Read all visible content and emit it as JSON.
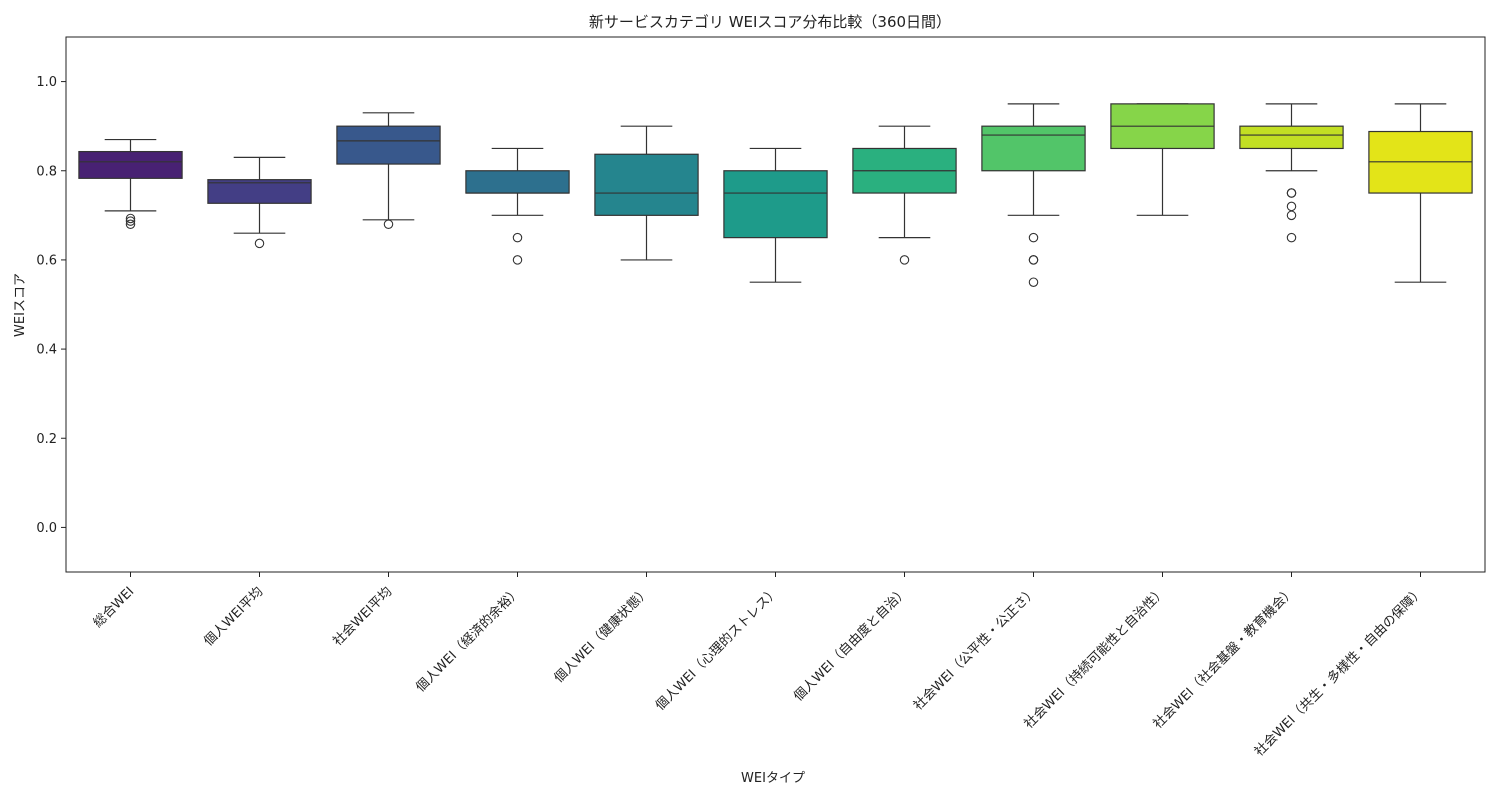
{
  "chart_data": {
    "type": "box",
    "title": "新サービスカテゴリ WEIスコア分布比較（360日間）",
    "xlabel": "WEIタイプ",
    "ylabel": "WEIスコア",
    "ylim": [
      -0.1,
      1.1
    ],
    "yticks": [
      0.0,
      0.2,
      0.4,
      0.6,
      0.8,
      1.0
    ],
    "ytick_labels": [
      "0.0",
      "0.2",
      "0.4",
      "0.6",
      "0.8",
      "1.0"
    ],
    "grid": false,
    "categories": [
      "総合WEI",
      "個人WEI平均",
      "社会WEI平均",
      "個人WEI（経済的余裕）",
      "個人WEI（健康状態）",
      "個人WEI（心理的ストレス）",
      "個人WEI（自由度と自治）",
      "社会WEI（公平性・公正さ）",
      "社会WEI（持続可能性と自治性）",
      "社会WEI（社会基盤・教育機会）",
      "社会WEI（共生・多様性・自由の保障）"
    ],
    "boxes": [
      {
        "whisker_low": 0.71,
        "q1": 0.783,
        "median": 0.82,
        "q3": 0.843,
        "whisker_high": 0.87,
        "outliers": [
          0.68,
          0.687,
          0.693
        ],
        "color": "#482173"
      },
      {
        "whisker_low": 0.66,
        "q1": 0.727,
        "median": 0.773,
        "q3": 0.78,
        "whisker_high": 0.83,
        "outliers": [
          0.637
        ],
        "color": "#433e85"
      },
      {
        "whisker_low": 0.69,
        "q1": 0.815,
        "median": 0.867,
        "q3": 0.9,
        "whisker_high": 0.93,
        "outliers": [
          0.68
        ],
        "color": "#38588c"
      },
      {
        "whisker_low": 0.7,
        "q1": 0.75,
        "median": 0.75,
        "q3": 0.8,
        "whisker_high": 0.85,
        "outliers": [
          0.6,
          0.65
        ],
        "color": "#2d708e"
      },
      {
        "whisker_low": 0.6,
        "q1": 0.7,
        "median": 0.75,
        "q3": 0.837,
        "whisker_high": 0.9,
        "outliers": [],
        "color": "#25858e"
      },
      {
        "whisker_low": 0.55,
        "q1": 0.65,
        "median": 0.75,
        "q3": 0.8,
        "whisker_high": 0.85,
        "outliers": [],
        "color": "#1e9b8a"
      },
      {
        "whisker_low": 0.65,
        "q1": 0.75,
        "median": 0.8,
        "q3": 0.85,
        "whisker_high": 0.9,
        "outliers": [
          0.6
        ],
        "color": "#2ab07f"
      },
      {
        "whisker_low": 0.7,
        "q1": 0.8,
        "median": 0.88,
        "q3": 0.9,
        "whisker_high": 0.95,
        "outliers": [
          0.55,
          0.6,
          0.6,
          0.65
        ],
        "color": "#52c569"
      },
      {
        "whisker_low": 0.7,
        "q1": 0.85,
        "median": 0.9,
        "q3": 0.95,
        "whisker_high": 0.95,
        "outliers": [],
        "color": "#86d549"
      },
      {
        "whisker_low": 0.8,
        "q1": 0.85,
        "median": 0.88,
        "q3": 0.9,
        "whisker_high": 0.95,
        "outliers": [
          0.65,
          0.7,
          0.72,
          0.75,
          0.75
        ],
        "color": "#c2df23"
      },
      {
        "whisker_low": 0.55,
        "q1": 0.75,
        "median": 0.82,
        "q3": 0.888,
        "whisker_high": 0.95,
        "outliers": [],
        "color": "#e3e418"
      }
    ]
  }
}
